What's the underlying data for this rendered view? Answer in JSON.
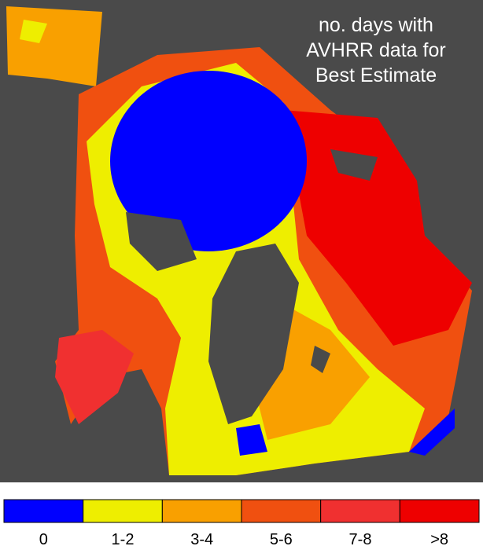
{
  "title_lines": [
    "no. days with",
    "AVHRR data for",
    "Best Estimate"
  ],
  "legend": {
    "items": [
      {
        "label": "0",
        "color": "#0000ff"
      },
      {
        "label": "1-2",
        "color": "#eeee00"
      },
      {
        "label": "3-4",
        "color": "#f9a000"
      },
      {
        "label": "5-6",
        "color": "#f05010"
      },
      {
        "label": "7-8",
        "color": "#f03030"
      },
      {
        "label": ">8",
        "color": "#ee0000"
      }
    ]
  }
}
